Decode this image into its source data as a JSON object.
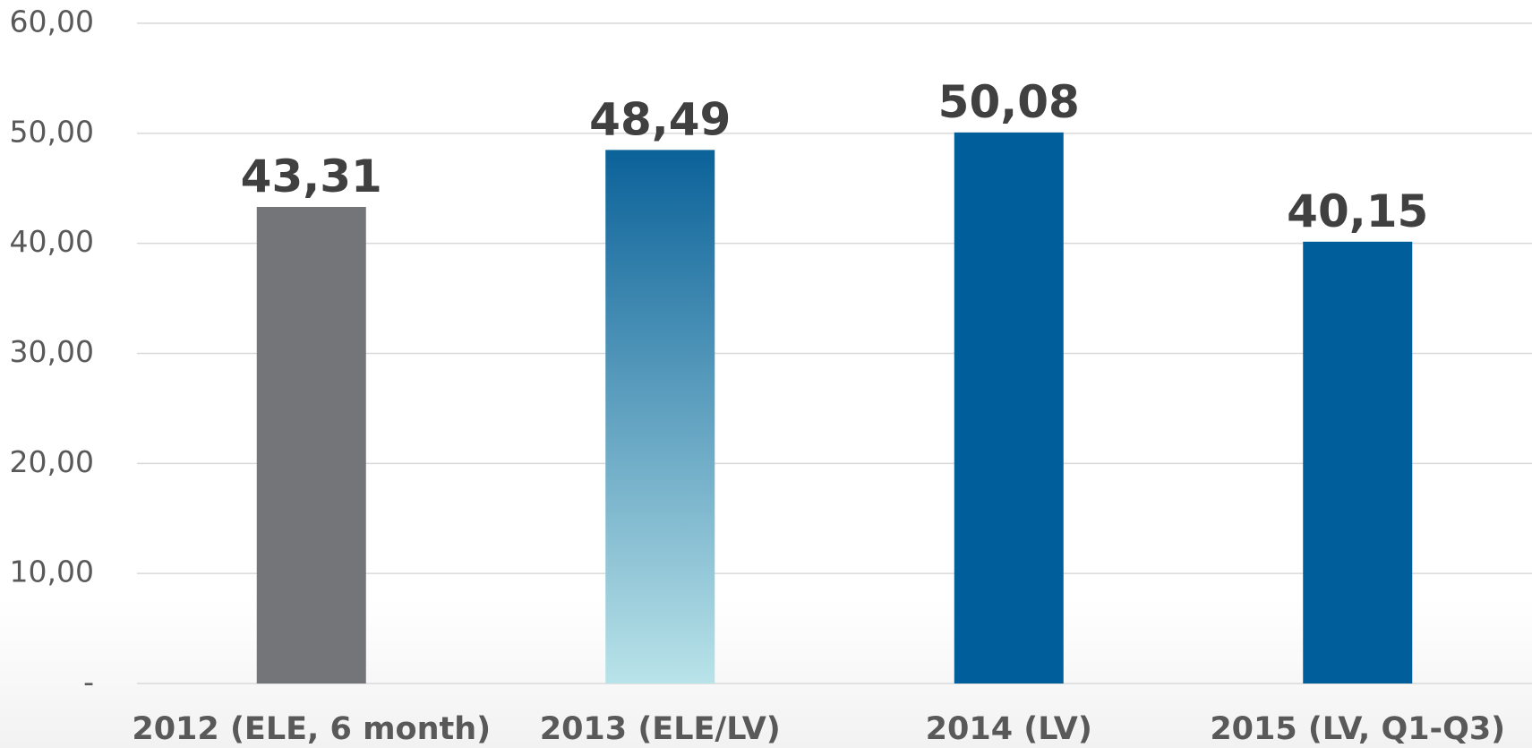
{
  "chart_data": {
    "type": "bar",
    "categories": [
      "2012 (ELE, 6 month)",
      "2013 (ELE/LV)",
      "2014 (LV)",
      "2015 (LV, Q1-Q3)"
    ],
    "values": [
      43.31,
      48.49,
      50.08,
      40.15
    ],
    "value_labels": [
      "43,31",
      "48,49",
      "50,08",
      "40,15"
    ],
    "colors": [
      "#747579",
      [
        "#0b6299",
        "#b9e3e9"
      ],
      "#005f9a",
      "#005f9a"
    ],
    "ylim": [
      0,
      60
    ],
    "yticks": [
      {
        "value": 0,
        "label": "-"
      },
      {
        "value": 10,
        "label": "10,00"
      },
      {
        "value": 20,
        "label": "20,00"
      },
      {
        "value": 30,
        "label": "30,00"
      },
      {
        "value": 40,
        "label": "40,00"
      },
      {
        "value": 50,
        "label": "50,00"
      },
      {
        "value": 60,
        "label": "60,00"
      }
    ],
    "grid": true
  }
}
